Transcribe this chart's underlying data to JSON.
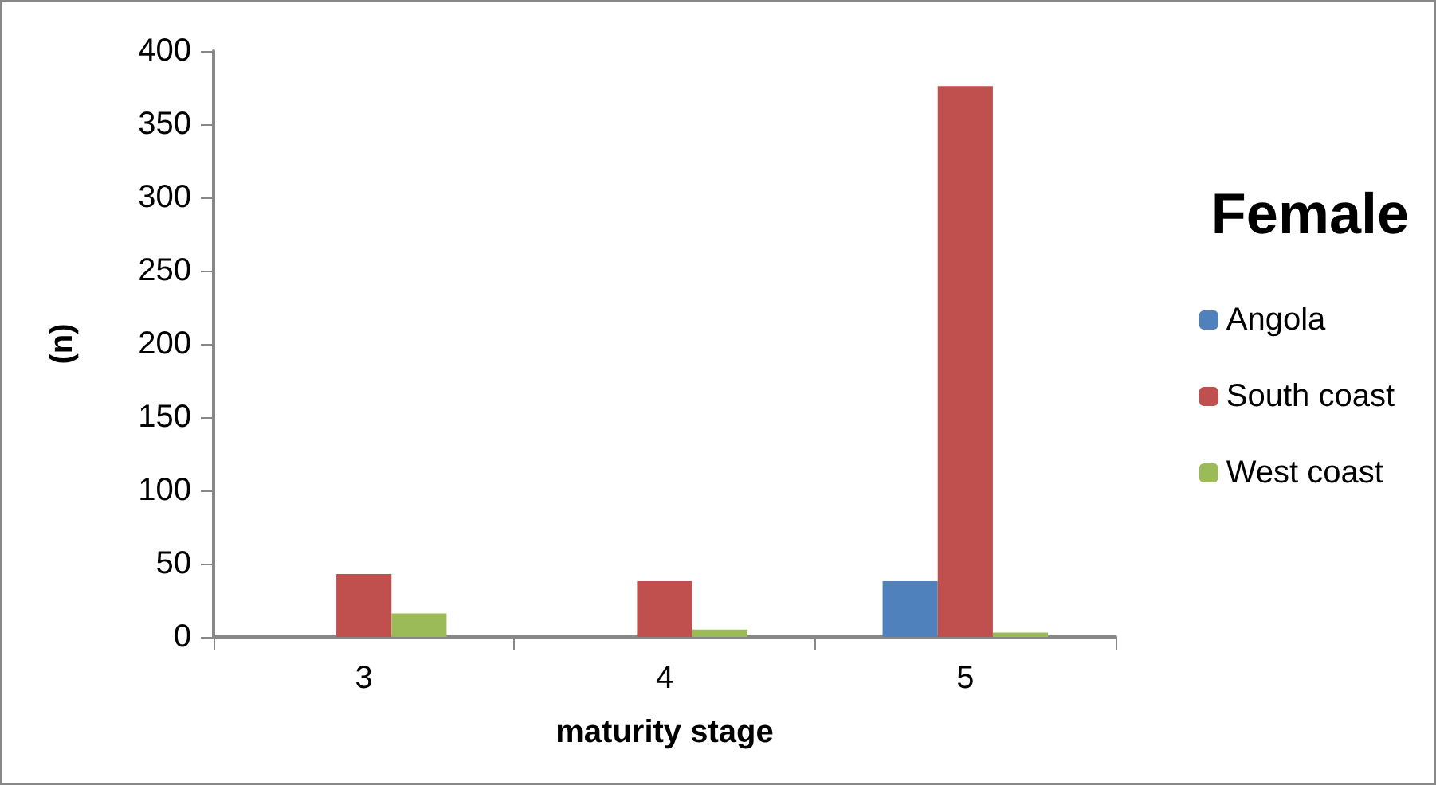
{
  "chart_data": {
    "type": "bar",
    "legend_title": "Female",
    "xlabel": "maturity stage",
    "ylabel": "(n)",
    "categories": [
      "3",
      "4",
      "5"
    ],
    "series": [
      {
        "name": "Angola",
        "color": "#4f81bd",
        "values": [
          0,
          0,
          38
        ]
      },
      {
        "name": "South coast",
        "color": "#c0504d",
        "values": [
          43,
          38,
          376
        ]
      },
      {
        "name": "West coast",
        "color": "#9bbb59",
        "values": [
          16,
          5,
          3
        ]
      }
    ],
    "ylim": [
      0,
      400
    ],
    "yticks": [
      0,
      50,
      100,
      150,
      200,
      250,
      300,
      350,
      400
    ],
    "grid": false,
    "legend": "right"
  }
}
